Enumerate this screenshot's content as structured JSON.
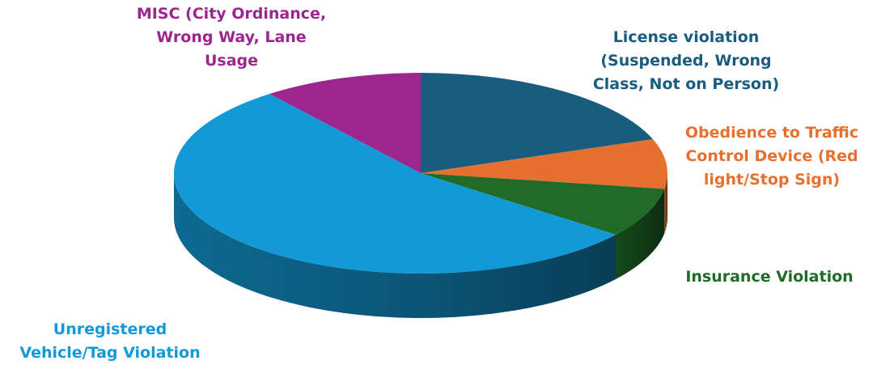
{
  "chart_data": {
    "type": "pie",
    "title": "",
    "style": "3d-exploded-none",
    "slices": [
      {
        "label": "License violation\n(Suspended, Wrong\nClass, Not on Person)",
        "value": 19.5,
        "color": "#1a5c7e"
      },
      {
        "label": "Obedience to Traffic\nControl Device (Red\nlight/Stop Sign)",
        "value": 8.0,
        "color": "#e5702f"
      },
      {
        "label": "Insurance Violation",
        "value": 8.0,
        "color": "#1f6b27"
      },
      {
        "label": "Unregistered\nVehicle/Tag Violation",
        "value": 54.0,
        "color": "#139ad6"
      },
      {
        "label": "MISC (City Ordinance,\nWrong Way, Lane\nUsage",
        "value": 10.5,
        "color": "#9b278e"
      }
    ]
  }
}
